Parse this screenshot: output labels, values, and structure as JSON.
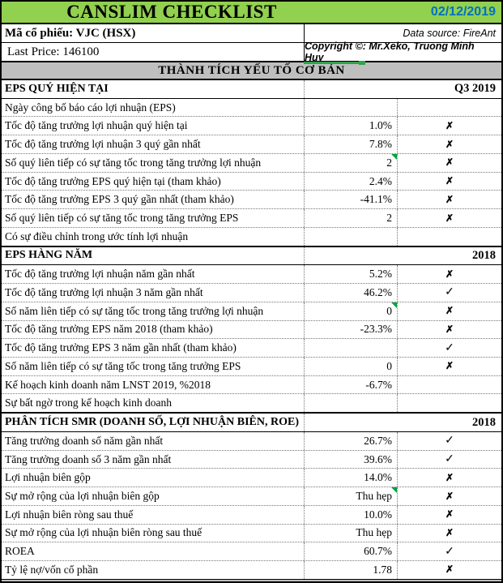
{
  "header": {
    "title": "CANSLIM CHECKLIST",
    "date": "02/12/2019",
    "ticker": "Mã cổ phiếu: VJC (HSX)",
    "data_source": "Data source: FireAnt",
    "last_price": "Last Price: 146100",
    "copyright": "Copyright ©: Mr.Xeko, Truong Minh Huy",
    "banner": "THÀNH TÍCH YẾU TỐ CƠ BẢN"
  },
  "colors": {
    "header_green": "#92D050",
    "banner_gray": "#BFBFBF",
    "date_blue": "#0070C0",
    "comment_indicator_green": "#00A33D",
    "marker_green": "#2FA34A"
  },
  "table": {
    "marks": {
      "x": "✗",
      "check": "✓"
    },
    "rows": [
      {
        "type": "section",
        "label": "EPS QUÝ HIỆN TẠI",
        "period": "Q3 2019"
      },
      {
        "type": "data",
        "label": "Ngày công bố báo cáo lợi nhuận (EPS)",
        "value": "",
        "mark": ""
      },
      {
        "type": "data",
        "label": "Tốc độ tăng trưởng lợi nhuận quý hiện tại",
        "value": "1.0%",
        "mark": "x"
      },
      {
        "type": "data",
        "label": "Tốc độ tăng trưởng lợi nhuận 3 quý gần nhất",
        "value": "7.8%",
        "mark": "x"
      },
      {
        "type": "data",
        "label": "Số quý liên tiếp có sự tăng tốc trong tăng trưởng lợi nhuận",
        "value": "2",
        "mark": "x",
        "comment": true
      },
      {
        "type": "data",
        "label": "Tốc độ tăng trưởng EPS quý hiện tại (tham khảo)",
        "value": "2.4%",
        "mark": "x"
      },
      {
        "type": "data",
        "label": "Tốc độ tăng trưởng EPS 3 quý gần nhất (tham khảo)",
        "value": "-41.1%",
        "mark": "x"
      },
      {
        "type": "data",
        "label": "Số quý liên tiếp có sự tăng tốc trong tăng trưởng EPS",
        "value": "2",
        "mark": "x"
      },
      {
        "type": "data",
        "label": "Có sự điều chỉnh trong ước tính lợi nhuận",
        "value": "",
        "mark": ""
      },
      {
        "type": "section",
        "label": "EPS HÀNG NĂM",
        "period": "2018"
      },
      {
        "type": "data",
        "label": "Tốc độ tăng trưởng lợi nhuận năm gần nhất",
        "value": "5.2%",
        "mark": "x"
      },
      {
        "type": "data",
        "label": "Tốc độ tăng trưởng lợi nhuận 3 năm gần nhất",
        "value": "46.2%",
        "mark": "check"
      },
      {
        "type": "data",
        "label": "Số năm liên tiếp có sự tăng tốc trong tăng trưởng lợi nhuận",
        "value": "0",
        "mark": "x",
        "comment": true
      },
      {
        "type": "data",
        "label": "Tốc độ tăng trưởng EPS năm 2018 (tham khảo)",
        "value": "-23.3%",
        "mark": "x"
      },
      {
        "type": "data",
        "label": "Tốc độ tăng trưởng EPS 3 năm gần nhất (tham khảo)",
        "value": "",
        "mark": "check"
      },
      {
        "type": "data",
        "label": "Số năm liên tiếp có sự tăng tốc trong tăng trưởng EPS",
        "value": "0",
        "mark": "x"
      },
      {
        "type": "data",
        "label": "Kế hoạch kinh doanh năm LNST 2019, %2018",
        "value": "-6.7%",
        "mark": ""
      },
      {
        "type": "data",
        "label": "Sự bất ngờ trong kế hoạch kinh doanh",
        "value": "",
        "mark": ""
      },
      {
        "type": "section",
        "label": "PHÂN TÍCH SMR (DOANH SỐ, LỢI NHUẬN BIÊN, ROE)",
        "period": "2018"
      },
      {
        "type": "data",
        "label": "Tăng trưởng doanh số năm gần nhất",
        "value": "26.7%",
        "mark": "check"
      },
      {
        "type": "data",
        "label": "Tăng trưởng doanh số 3 năm gần nhất",
        "value": "39.6%",
        "mark": "check"
      },
      {
        "type": "data",
        "label": "Lợi nhuận biên gộp",
        "value": "14.0%",
        "mark": "x"
      },
      {
        "type": "data",
        "label": "Sự mở rộng của lợi nhuận biên gộp",
        "value": "Thu hẹp",
        "mark": "x",
        "comment": true
      },
      {
        "type": "data",
        "label": "Lợi nhuận biên ròng sau thuế",
        "value": "10.0%",
        "mark": "x"
      },
      {
        "type": "data",
        "label": "Sự mở rộng của lợi nhuận biên ròng sau thuế",
        "value": "Thu hẹp",
        "mark": "x"
      },
      {
        "type": "data",
        "label": "ROEA",
        "value": "60.7%",
        "mark": "check"
      },
      {
        "type": "data",
        "label": "Tỷ lệ nợ/vốn cổ phần",
        "value": "1.78",
        "mark": "x"
      }
    ]
  }
}
